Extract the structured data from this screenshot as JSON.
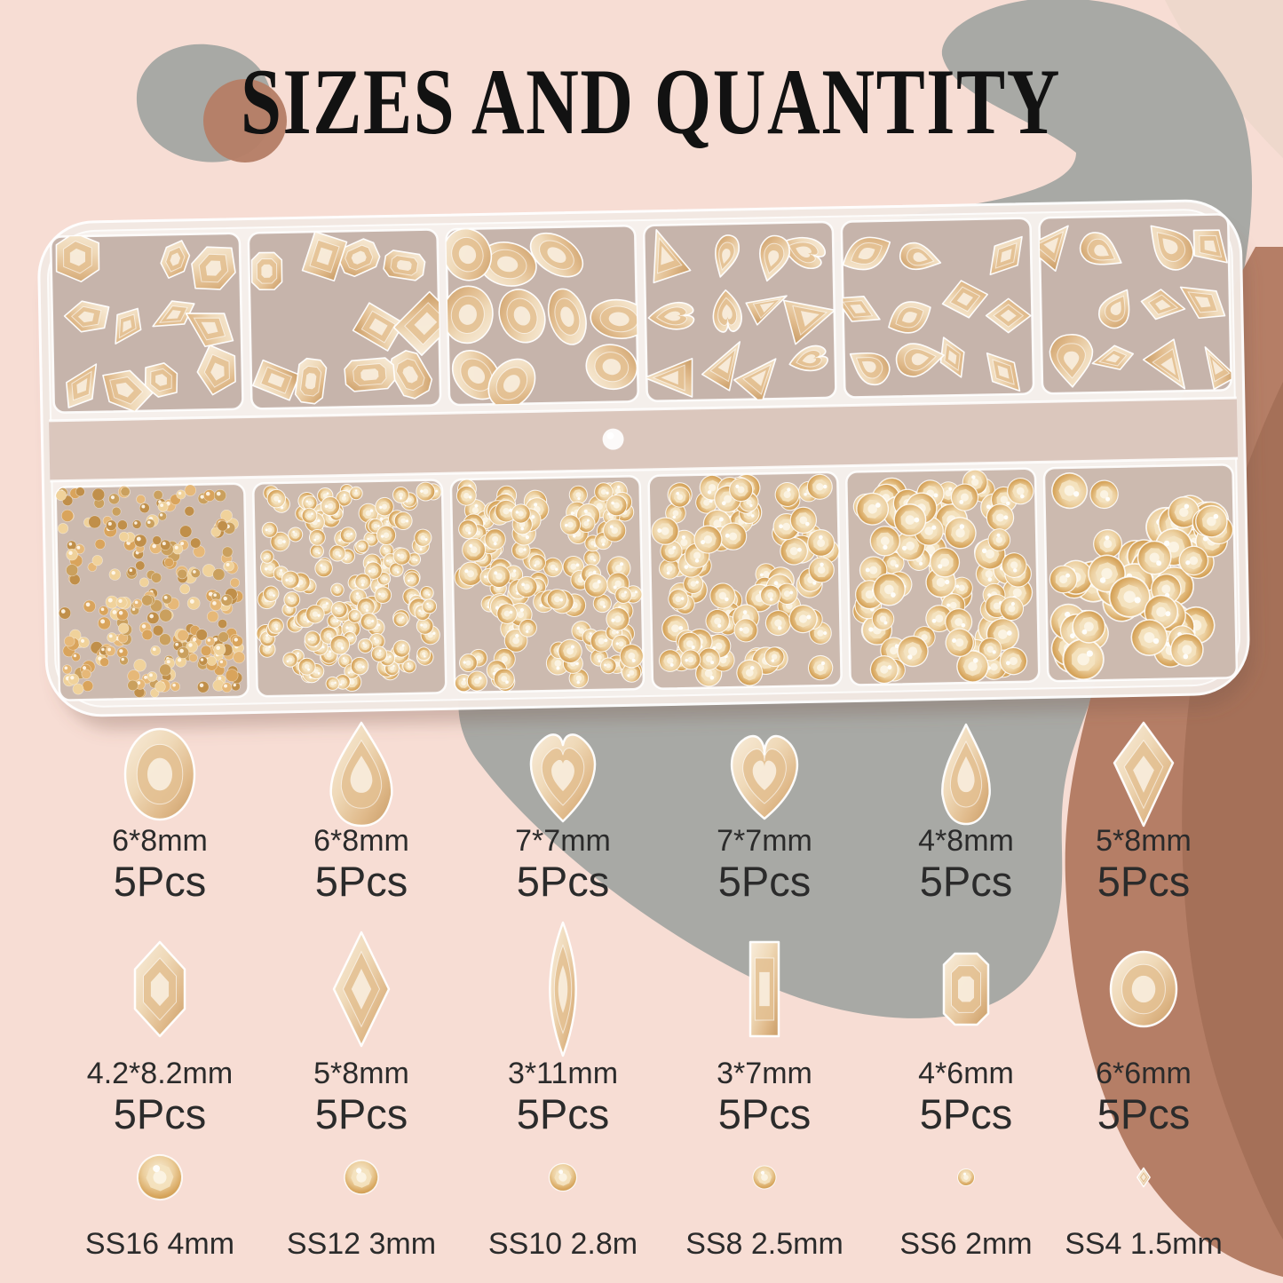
{
  "title": "SIZES AND QUANTITY",
  "palette": {
    "background": "#f7ddd4",
    "beige_corner": "#eed8cc",
    "gray_blob": "#a8a9a5",
    "terracotta": "#b57e66",
    "terracotta_dark": "#a06c54",
    "case_shell": "#f2e9e3",
    "case_lip": "#faf5f1",
    "cell_top": "#c6b4ab",
    "cell_bottom": "#ccbaaf",
    "strip": "#d9c4bb",
    "text": "#2b2b2b",
    "gold_rim": "#c08c42",
    "gold_mid": "#dcab64",
    "gold_facet": "#f4e3c0",
    "gold_table": "#fbf3e2",
    "fancy_edge": "#caa06c",
    "fancy_body": "#f0e1cf"
  },
  "samples": {
    "row1": [
      {
        "size": "6*8mm",
        "qty": "5Pcs",
        "shape": "oval"
      },
      {
        "size": "6*8mm",
        "qty": "5Pcs",
        "shape": "drop"
      },
      {
        "size": "7*7mm",
        "qty": "5Pcs",
        "shape": "shield"
      },
      {
        "size": "7*7mm",
        "qty": "5Pcs",
        "shape": "heart"
      },
      {
        "size": "4*8mm",
        "qty": "5Pcs",
        "shape": "drop"
      },
      {
        "size": "5*8mm",
        "qty": "5Pcs",
        "shape": "kite"
      }
    ],
    "row2": [
      {
        "size": "4.2*8.2mm",
        "qty": "5Pcs",
        "shape": "hexagon"
      },
      {
        "size": "5*8mm",
        "qty": "5Pcs",
        "shape": "rhombus"
      },
      {
        "size": "3*11mm",
        "qty": "5Pcs",
        "shape": "navette"
      },
      {
        "size": "3*7mm",
        "qty": "5Pcs",
        "shape": "baguette"
      },
      {
        "size": "4*6mm",
        "qty": "5Pcs",
        "shape": "emerald"
      },
      {
        "size": "6*6mm",
        "qty": "5Pcs",
        "shape": "round"
      }
    ],
    "row3": [
      {
        "label": "SS16 4mm",
        "shape": "flatback",
        "d": 50
      },
      {
        "label": "SS12 3mm",
        "shape": "flatback",
        "d": 38
      },
      {
        "label": "SS10 2.8m",
        "shape": "flatback",
        "d": 31
      },
      {
        "label": "SS8 2.5mm",
        "shape": "flatback",
        "d": 26
      },
      {
        "label": "SS6 2mm",
        "shape": "flatback",
        "d": 19
      },
      {
        "label": "SS4 1.5mm",
        "shape": "diamond",
        "d": 17
      }
    ]
  },
  "case": {
    "rows": 2,
    "columns": 6,
    "top_cells": [
      {
        "shapes": [
          "kite",
          "hexagon",
          "pentagon"
        ],
        "count": 11,
        "min": 44,
        "max": 62
      },
      {
        "shapes": [
          "baguette",
          "emerald"
        ],
        "count": 10,
        "min": 40,
        "max": 58
      },
      {
        "shapes": [
          "oval",
          "round"
        ],
        "count": 10,
        "min": 54,
        "max": 66
      },
      {
        "shapes": [
          "heart",
          "drop",
          "triangle"
        ],
        "count": 12,
        "min": 46,
        "max": 60
      },
      {
        "shapes": [
          "navette",
          "drop",
          "rhombus"
        ],
        "count": 11,
        "min": 46,
        "max": 64
      },
      {
        "shapes": [
          "drop",
          "kite",
          "triangle"
        ],
        "count": 11,
        "min": 44,
        "max": 60
      }
    ],
    "bottom_cells": [
      {
        "count": 240,
        "r": 6
      },
      {
        "count": 150,
        "r": 9
      },
      {
        "count": 120,
        "r": 11
      },
      {
        "count": 95,
        "r": 13
      },
      {
        "count": 78,
        "r": 15
      },
      {
        "count": 55,
        "r": 19
      }
    ]
  }
}
